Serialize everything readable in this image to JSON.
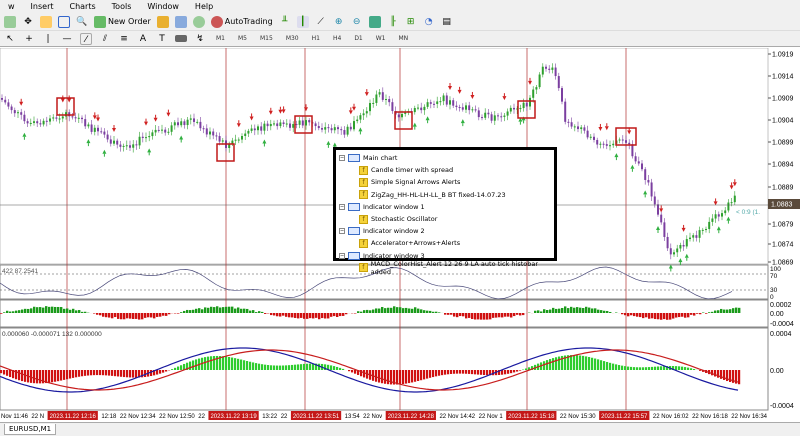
{
  "menu": [
    "w",
    "Insert",
    "Charts",
    "Tools",
    "Window",
    "Help"
  ],
  "toolbar": {
    "new_order": "New Order",
    "autotrading": "AutoTrading"
  },
  "timeframes": [
    "M1",
    "M5",
    "M15",
    "M30",
    "H1",
    "H4",
    "D1",
    "W1",
    "MN"
  ],
  "price_axis": [
    "1.0919",
    "1.0914",
    "1.0909",
    "1.0904",
    "1.0899",
    "1.0894",
    "1.0889",
    "1.0879",
    "1.0874",
    "1.0869"
  ],
  "current_price": "1.0883",
  "spread_label": "< 0:9 (1.",
  "stoch": {
    "values": "422 87.2541",
    "levels": [
      "100",
      "70",
      "30",
      "0"
    ]
  },
  "ac": {
    "levels": [
      "0.0002",
      "0.00",
      "-0.0004"
    ]
  },
  "macd": {
    "values": "0.000060 -0.000071 132 0.000000",
    "levels": [
      "0.0004",
      "0.00",
      "-0.0004"
    ]
  },
  "time_axis": [
    "Nov 11:46",
    "22 N",
    "12:18",
    "22 Nov 12:34",
    "22 Nov 12:50",
    "22",
    "13:22",
    "22",
    "13:54",
    "22 Nov",
    "22 Nov 14:42",
    "22 Nov 1",
    "22 Nov 15:30",
    "22 Nov 16:02",
    "22 Nov 16:18",
    "22 Nov 16:34"
  ],
  "time_markers": [
    "2023.11.22 12:16",
    "2023.11.22 13:19",
    "2023.11.22 13:51",
    "2023.11.22 14:28",
    "2023.11.22 15:18",
    "2023.11.22 15:57"
  ],
  "legend": [
    {
      "label": "Main chart",
      "kind": "window"
    },
    {
      "label": "Candle timer with spread",
      "kind": "indicator"
    },
    {
      "label": "Simple Signal Arrows Alerts",
      "kind": "indicator"
    },
    {
      "label": "ZigZag_HH-HL-LH-LL_B BT fixed-14.07.23",
      "kind": "indicator"
    },
    {
      "label": "Indicator window 1",
      "kind": "window"
    },
    {
      "label": "Stochastic Oscillator",
      "kind": "indicator"
    },
    {
      "label": "Indicator window 2",
      "kind": "window"
    },
    {
      "label": "Accelerator+Arrows+Alerts",
      "kind": "indicator"
    },
    {
      "label": "Indicator window 3",
      "kind": "window"
    },
    {
      "label": "MACD_ColorHist_Alert 12 26 9 LA auto tick histobar added",
      "kind": "indicator"
    }
  ],
  "tab": "EURUSD,M1",
  "colors": {
    "bull": "#2ea02e",
    "bear": "#7b3fa0",
    "marker": "#c81e1e",
    "macd": "#1a1aa0",
    "signal": "#c81e1e"
  }
}
